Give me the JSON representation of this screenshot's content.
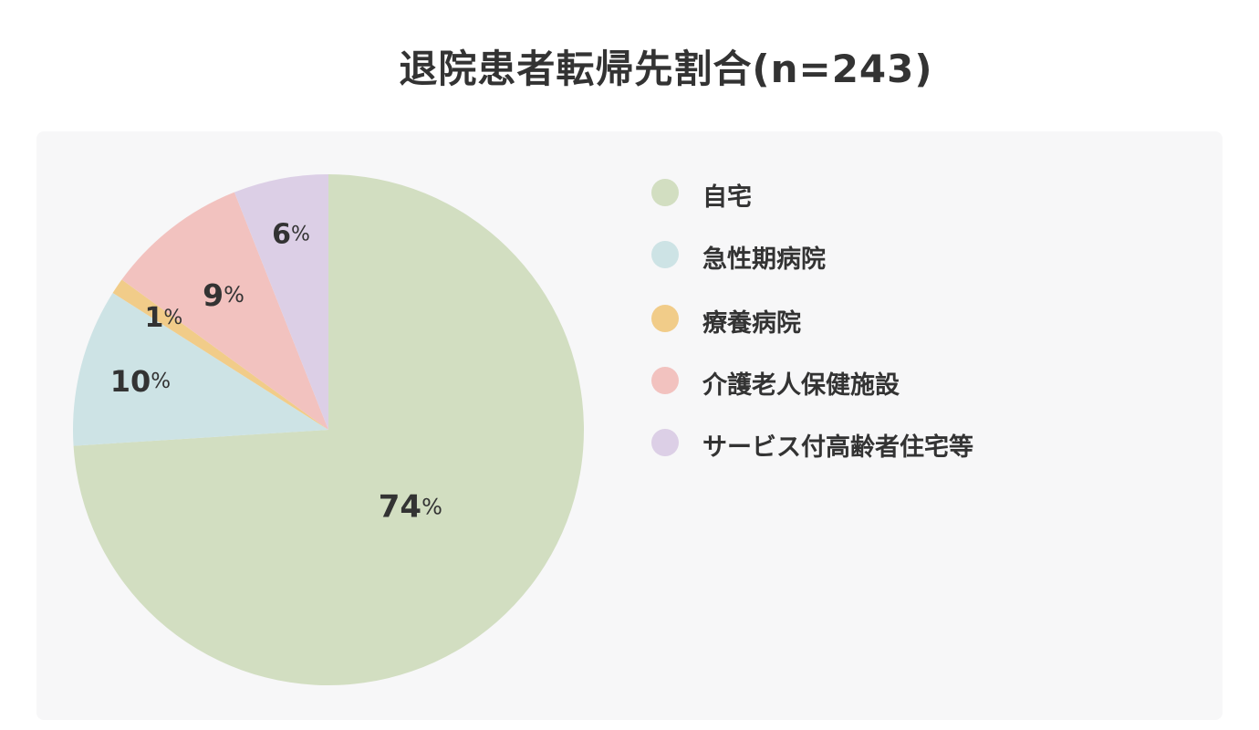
{
  "chart_data": {
    "type": "pie",
    "title": "退院患者転帰先割合(n=243)",
    "categories": [
      "自宅",
      "急性期病院",
      "療養病院",
      "介護老人保健施設",
      "サービス付高齢者住宅等"
    ],
    "values": [
      74,
      10,
      1,
      9,
      6
    ],
    "value_labels": [
      "74",
      "10",
      "1",
      "9",
      "6"
    ],
    "percent_sign": "%",
    "colors": [
      "#d2dec1",
      "#cde3e5",
      "#f1cc89",
      "#f2c2bf",
      "#dccfe6"
    ],
    "legend_position": "right",
    "start_angle": "top, clockwise"
  }
}
